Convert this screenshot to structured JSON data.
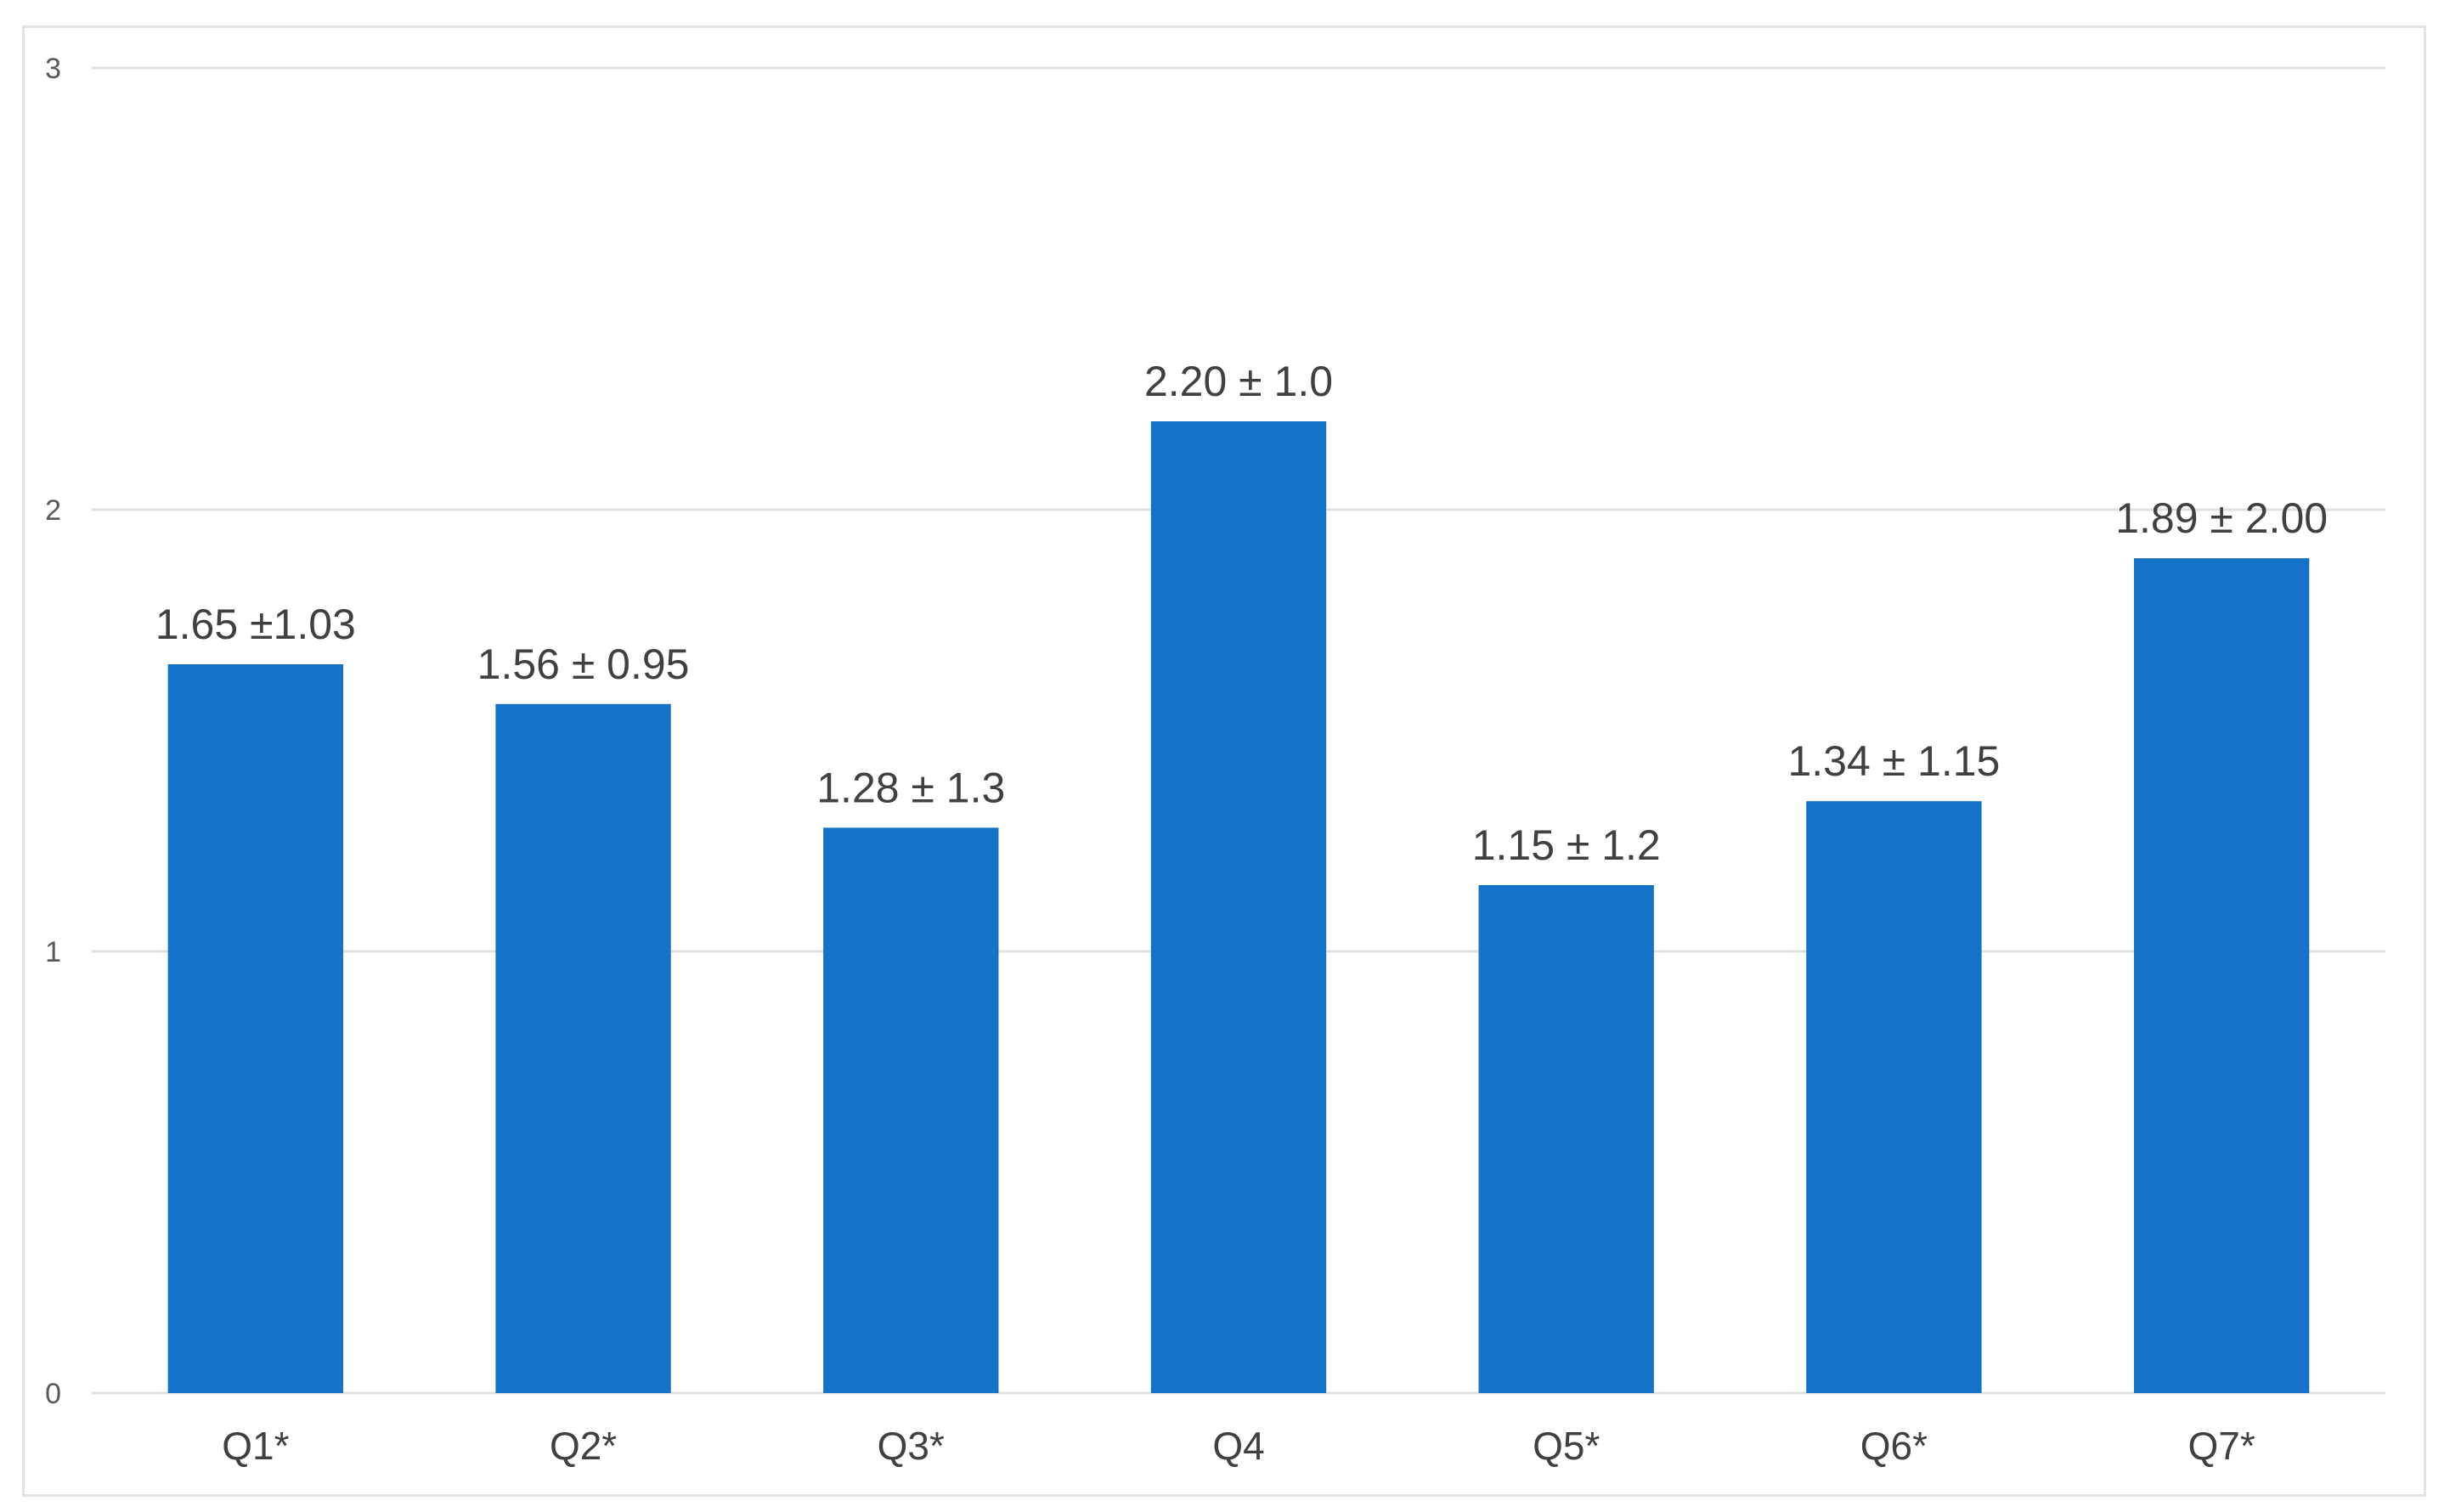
{
  "chart_data": {
    "type": "bar",
    "categories": [
      "Q1*",
      "Q2*",
      "Q3*",
      "Q4",
      "Q5*",
      "Q6*",
      "Q7*"
    ],
    "values": [
      1.65,
      1.56,
      1.28,
      2.2,
      1.15,
      1.34,
      1.89
    ],
    "data_labels": [
      "1.65 ±1.03",
      "1.56 ± 0.95",
      "1.28 ± 1.3",
      "2.20 ± 1.0",
      "1.15 ± 1.2",
      "1.34 ± 1.15",
      "1.89 ± 2.00"
    ],
    "title": "",
    "xlabel": "",
    "ylabel": "",
    "ylim": [
      0,
      3
    ],
    "yticks": [
      "0",
      "1",
      "2",
      "3"
    ],
    "grid": true,
    "legend": "none",
    "bar_color": "#1572C9"
  }
}
